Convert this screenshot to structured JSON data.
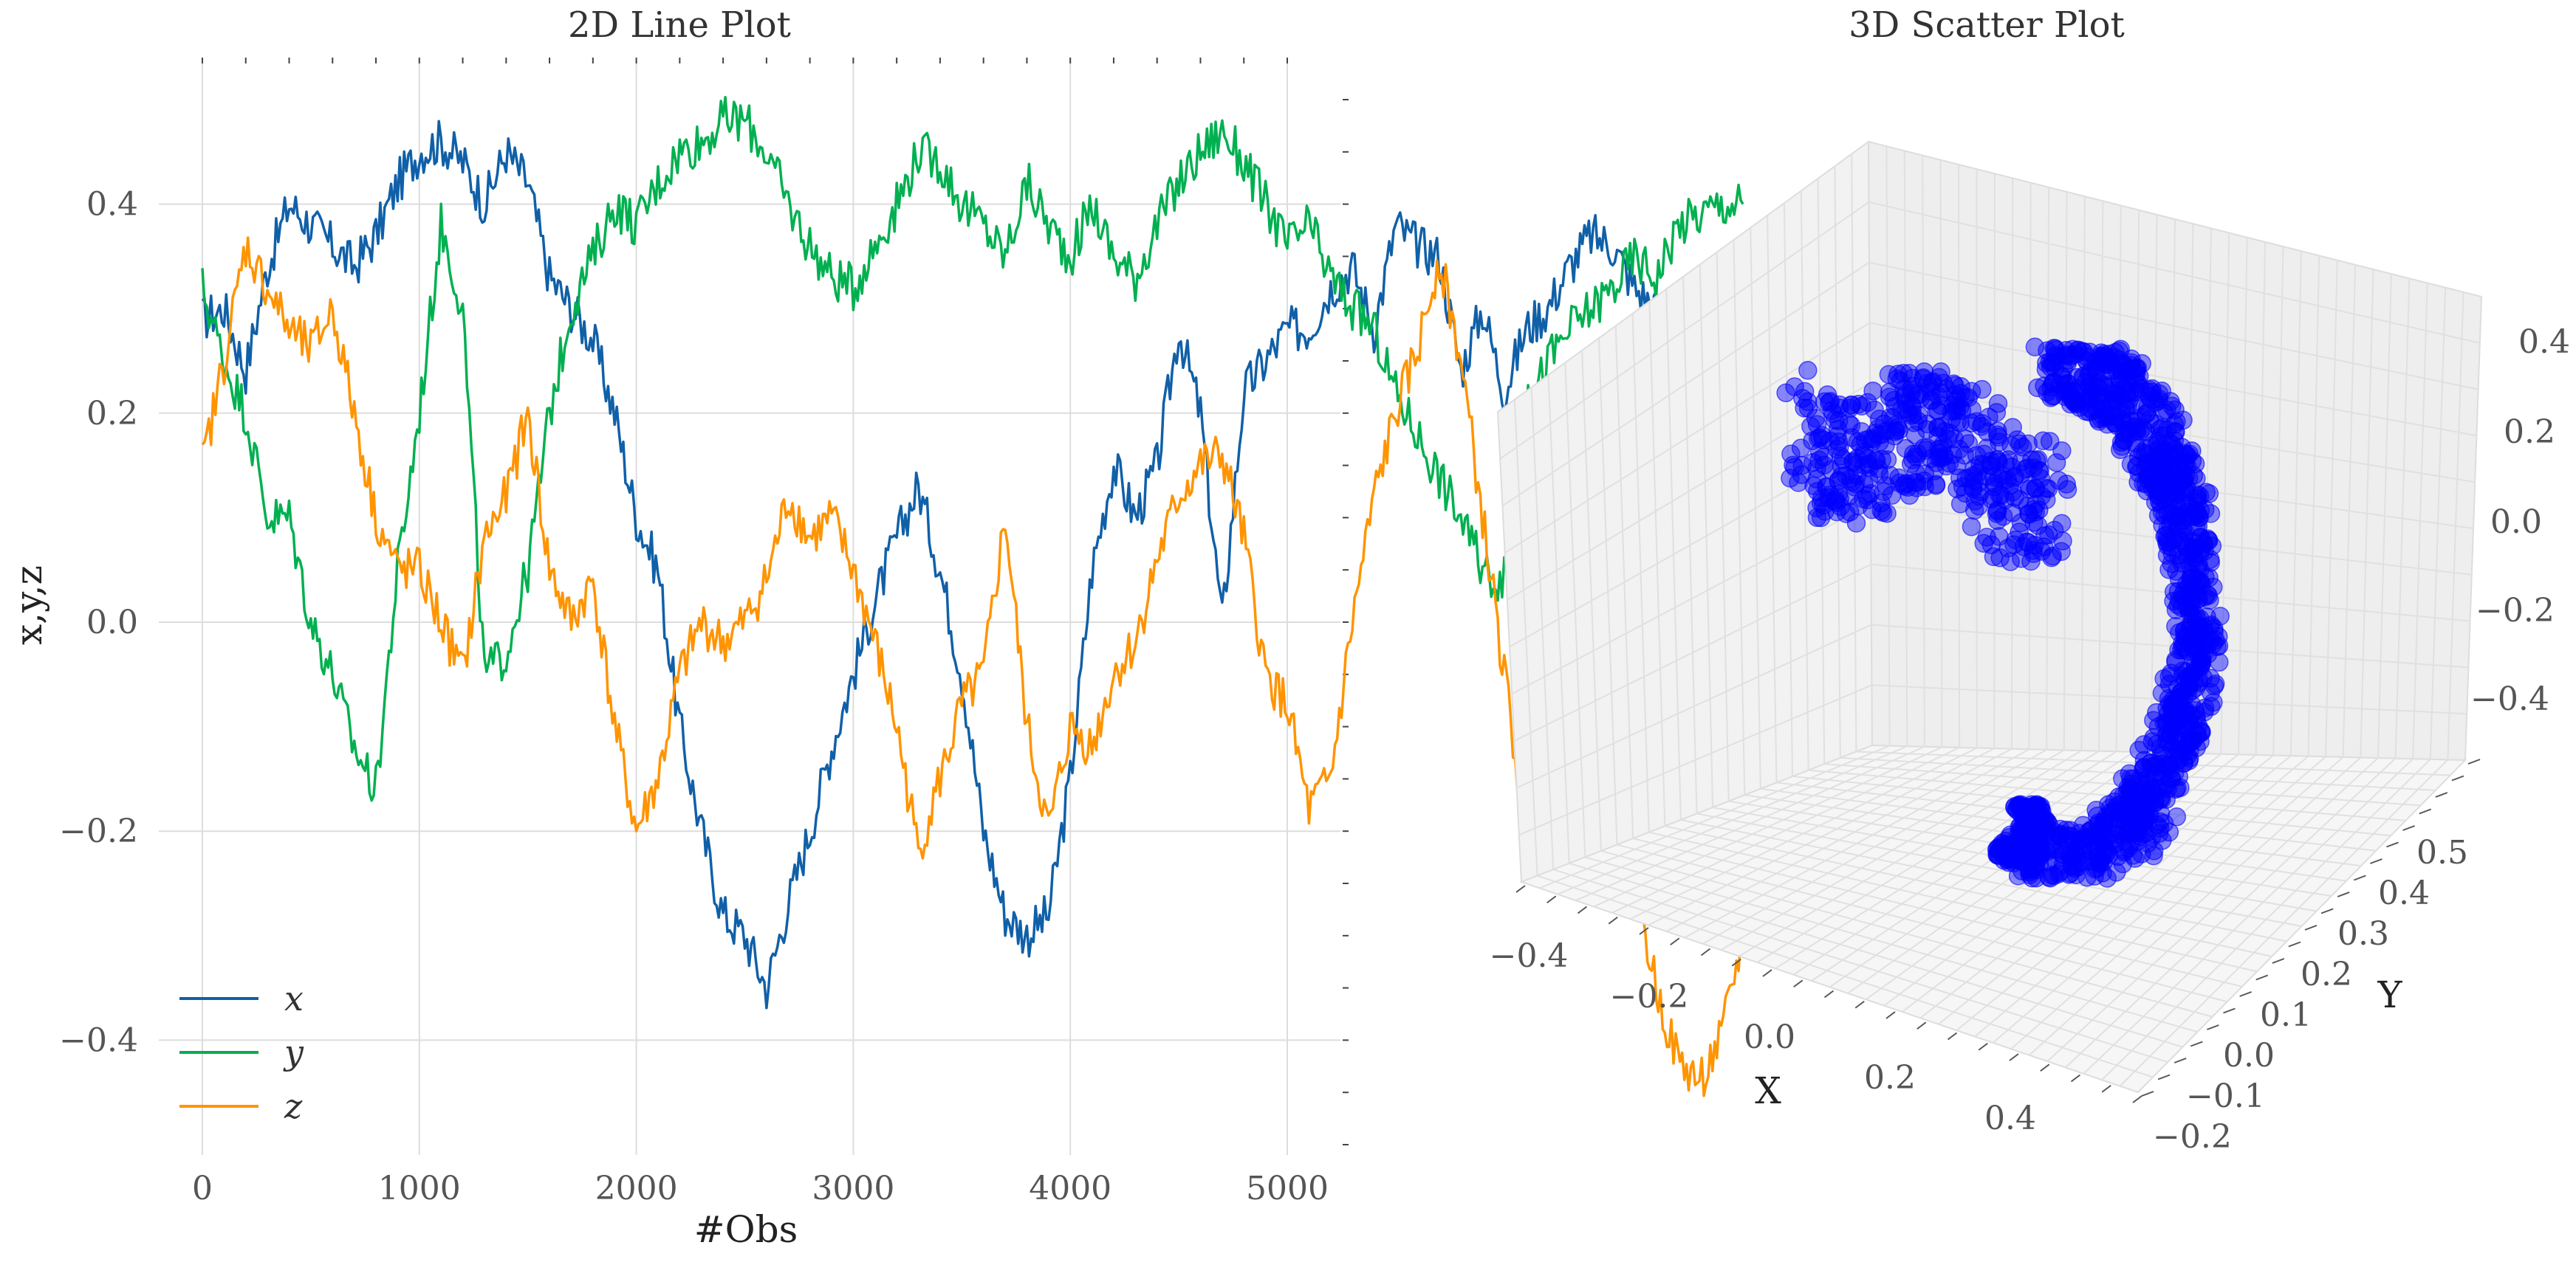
{
  "chart_data": [
    {
      "type": "line",
      "title": "2D Line Plot",
      "xlabel": "#Obs",
      "ylabel": "x,y,z",
      "xlim": [
        -100,
        5100
      ],
      "ylim": [
        -0.51,
        0.54
      ],
      "xticks": [
        0,
        1000,
        2000,
        3000,
        4000,
        5000
      ],
      "xtick_labels": [
        "0",
        "1000",
        "2000",
        "3000",
        "4000",
        "5000"
      ],
      "yticks": [
        0.4,
        0.2,
        0.0,
        -0.2,
        -0.4
      ],
      "ytick_labels": [
        "0.4",
        "0.2",
        "0.0",
        "−0.2",
        "−0.4"
      ],
      "grid": true,
      "legend_position": "bottom-left",
      "x_step": 100,
      "series": [
        {
          "name": "x",
          "color": "#1060a8",
          "values": [
            0.29,
            0.3,
            0.24,
            0.34,
            0.4,
            0.38,
            0.36,
            0.34,
            0.37,
            0.42,
            0.45,
            0.46,
            0.44,
            0.4,
            0.45,
            0.42,
            0.33,
            0.3,
            0.27,
            0.2,
            0.1,
            0.05,
            -0.1,
            -0.2,
            -0.28,
            -0.3,
            -0.35,
            -0.27,
            -0.2,
            -0.12,
            -0.05,
            0.02,
            0.08,
            0.13,
            0.05,
            -0.05,
            -0.2,
            -0.28,
            -0.3,
            -0.28,
            -0.15,
            0.05,
            0.15,
            0.1,
            0.15,
            0.28,
            0.2,
            0.0,
            0.22,
            0.25,
            0.28,
            0.28,
            0.32,
            0.34,
            0.28,
            0.38,
            0.36,
            0.35,
            0.24,
            0.3,
            0.22,
            0.28,
            0.3,
            0.34,
            0.37,
            0.36,
            0.32,
            0.3,
            0.28,
            0.22,
            0.22,
            0.2
          ]
        },
        {
          "name": "y",
          "color": "#00b050",
          "values": [
            0.32,
            0.25,
            0.2,
            0.1,
            0.1,
            0.0,
            -0.05,
            -0.12,
            -0.16,
            0.05,
            0.2,
            0.38,
            0.3,
            -0.05,
            -0.03,
            0.05,
            0.2,
            0.3,
            0.35,
            0.4,
            0.38,
            0.42,
            0.45,
            0.46,
            0.48,
            0.48,
            0.45,
            0.4,
            0.36,
            0.33,
            0.32,
            0.36,
            0.4,
            0.45,
            0.44,
            0.4,
            0.38,
            0.35,
            0.42,
            0.38,
            0.35,
            0.4,
            0.35,
            0.33,
            0.38,
            0.42,
            0.45,
            0.47,
            0.44,
            0.4,
            0.36,
            0.38,
            0.33,
            0.3,
            0.28,
            0.22,
            0.18,
            0.14,
            0.1,
            0.05,
            0.04,
            0.2,
            0.25,
            0.28,
            0.3,
            0.32,
            0.35,
            0.33,
            0.38,
            0.39,
            0.4,
            0.4
          ]
        },
        {
          "name": "z",
          "color": "#ff9400",
          "values": [
            0.15,
            0.25,
            0.36,
            0.32,
            0.28,
            0.26,
            0.3,
            0.2,
            0.1,
            0.05,
            0.05,
            0.0,
            -0.05,
            0.08,
            0.12,
            0.2,
            0.05,
            0.0,
            0.04,
            -0.1,
            -0.2,
            -0.15,
            -0.05,
            0.0,
            -0.02,
            0.0,
            0.04,
            0.12,
            0.08,
            0.1,
            0.05,
            -0.02,
            -0.1,
            -0.22,
            -0.15,
            -0.08,
            -0.05,
            0.1,
            -0.1,
            -0.2,
            -0.1,
            -0.12,
            -0.05,
            -0.02,
            0.06,
            0.12,
            0.15,
            0.16,
            0.08,
            -0.05,
            -0.08,
            -0.18,
            -0.15,
            0.0,
            0.12,
            0.2,
            0.26,
            0.35,
            0.25,
            0.1,
            -0.05,
            -0.2,
            -0.1,
            0.0,
            -0.05,
            -0.18,
            -0.25,
            -0.35,
            -0.42,
            -0.44,
            -0.4,
            -0.3,
            -0.2,
            -0.2,
            -0.15,
            -0.14,
            -0.18,
            -0.22,
            -0.2,
            -0.18
          ]
        }
      ]
    },
    {
      "type": "scatter",
      "title": "3D Scatter Plot",
      "xlabel": "X",
      "ylabel": "Y",
      "x_tick_labels": [
        "−0.4",
        "−0.2",
        "0.0",
        "0.2",
        "0.4"
      ],
      "y_tick_labels": [
        "−0.2",
        "−0.1",
        "0.0",
        "0.1",
        "0.2",
        "0.3",
        "0.4",
        "0.5"
      ],
      "z_tick_labels": [
        "0.4",
        "0.2",
        "0.0",
        "−0.2",
        "−0.4"
      ],
      "point_color": "#0000ff",
      "grid": true
    }
  ]
}
